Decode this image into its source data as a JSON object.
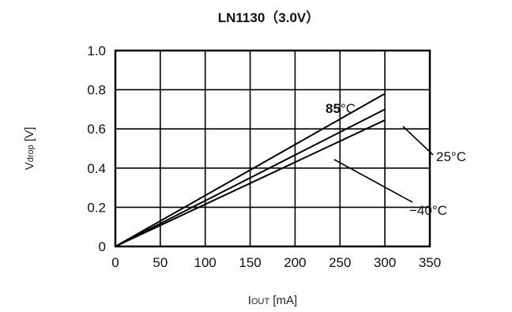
{
  "chart_data": {
    "type": "line",
    "title": "LN1130（3.0V）",
    "xlabel": {
      "main": "I",
      "sub": "OUT",
      "unit": " [mA]"
    },
    "ylabel": {
      "main": "V",
      "sub": "drop",
      "unit": " [V]"
    },
    "xlim": [
      0,
      350
    ],
    "ylim": [
      0,
      1.0
    ],
    "x_ticks": [
      0,
      50,
      100,
      150,
      200,
      250,
      300,
      350
    ],
    "x_tick_labels": [
      "0",
      "50",
      "100",
      "150",
      "200",
      "250",
      "300",
      "350"
    ],
    "y_ticks": [
      0,
      0.2,
      0.4,
      0.6,
      0.8,
      1.0
    ],
    "y_tick_labels": [
      "0",
      "0.2",
      "0.4",
      "0.6",
      "0.8",
      "1.0"
    ],
    "grid": true,
    "series": [
      {
        "name": "85°C",
        "x": [
          0,
          300
        ],
        "y": [
          0,
          0.78
        ]
      },
      {
        "name": "25°C",
        "x": [
          0,
          300
        ],
        "y": [
          0,
          0.7
        ]
      },
      {
        "name": "−40°C",
        "x": [
          0,
          300
        ],
        "y": [
          0,
          0.645
        ]
      }
    ],
    "annotations": [
      {
        "text": "85",
        "suffix": "°C",
        "series": 0
      },
      {
        "text": "25°C",
        "series": 1
      },
      {
        "text": "−40°C",
        "series": 2
      }
    ]
  }
}
